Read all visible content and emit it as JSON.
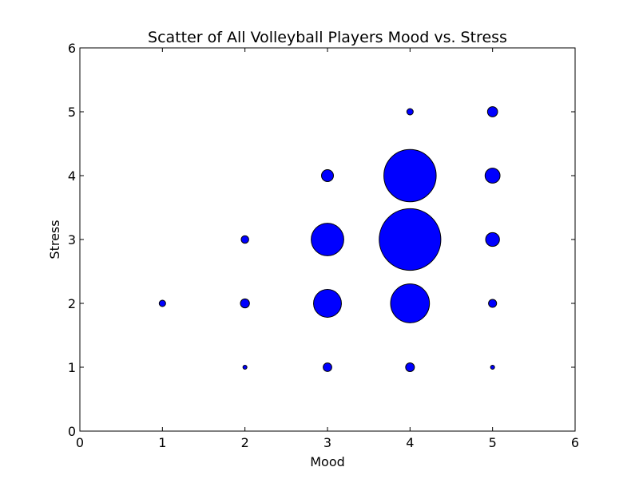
{
  "chart_data": {
    "type": "scatter",
    "title": "Scatter of All Volleyball Players Mood vs. Stress",
    "xlabel": "Mood",
    "ylabel": "Stress",
    "xlim": [
      0,
      6
    ],
    "ylim": [
      0,
      6
    ],
    "xticks": [
      "0",
      "1",
      "2",
      "3",
      "4",
      "5",
      "6"
    ],
    "yticks": [
      "0",
      "1",
      "2",
      "3",
      "4",
      "5",
      "6"
    ],
    "grid": false,
    "marker_color": "#0000ff",
    "marker_edge_color": "#000000",
    "size_note": "marker area proportional to count of players",
    "points": [
      {
        "x": 1,
        "y": 2,
        "count": 1
      },
      {
        "x": 2,
        "y": 1,
        "count": 0.4
      },
      {
        "x": 2,
        "y": 2,
        "count": 2
      },
      {
        "x": 2,
        "y": 3,
        "count": 1.4
      },
      {
        "x": 3,
        "y": 1,
        "count": 1.8
      },
      {
        "x": 3,
        "y": 2,
        "count": 19
      },
      {
        "x": 3,
        "y": 3,
        "count": 26
      },
      {
        "x": 3,
        "y": 4,
        "count": 3.5
      },
      {
        "x": 4,
        "y": 1,
        "count": 1.9
      },
      {
        "x": 4,
        "y": 2,
        "count": 37
      },
      {
        "x": 4,
        "y": 3,
        "count": 93
      },
      {
        "x": 4,
        "y": 4,
        "count": 67
      },
      {
        "x": 4,
        "y": 5,
        "count": 1
      },
      {
        "x": 5,
        "y": 1,
        "count": 0.4
      },
      {
        "x": 5,
        "y": 2,
        "count": 1.6
      },
      {
        "x": 5,
        "y": 3,
        "count": 4.7
      },
      {
        "x": 5,
        "y": 4,
        "count": 5.5
      },
      {
        "x": 5,
        "y": 5,
        "count": 2.5
      }
    ]
  }
}
